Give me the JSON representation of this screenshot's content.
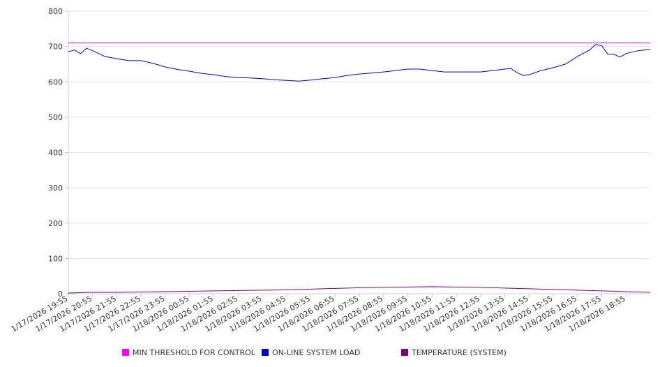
{
  "chart_data": {
    "type": "line",
    "ylim": [
      0,
      800
    ],
    "yticks": [
      0,
      100,
      200,
      300,
      400,
      500,
      600,
      700,
      800
    ],
    "grid": "horizontal",
    "legend_placement": "bottom",
    "x_tick_labels": [
      "1/17/2026 19:55",
      "1/17/2026 20:55",
      "1/17/2026 21:55",
      "1/17/2026 22:55",
      "1/17/2026 23:55",
      "1/18/2026 00:55",
      "1/18/2026 01:55",
      "1/18/2026 02:55",
      "1/18/2026 03:55",
      "1/18/2026 04:55",
      "1/18/2026 05:55",
      "1/18/2026 06:55",
      "1/18/2026 07:55",
      "1/18/2026 08:55",
      "1/18/2026 09:55",
      "1/18/2026 10:55",
      "1/18/2026 11:55",
      "1/18/2026 12:55",
      "1/18/2026 13:55",
      "1/18/2026 14:55",
      "1/18/2026 15:55",
      "1/18/2026 16:55",
      "1/18/2026 17:55",
      "1/18/2026 18:55"
    ],
    "x_range": [
      "1/17/2026 19:55",
      "1/18/2026 19:55"
    ],
    "series": [
      {
        "name": "MIN THRESHOLD FOR CONTROL",
        "color": "#ff00ff",
        "points": [
          [
            "1/17/2026 19:55",
            710
          ],
          [
            "1/18/2026 19:55",
            710
          ]
        ]
      },
      {
        "name": "ON-LINE SYSTEM LOAD",
        "color": "#0000dd",
        "points": [
          [
            "1/17/2026 19:55",
            685
          ],
          [
            "1/17/2026 20:10",
            690
          ],
          [
            "1/17/2026 20:25",
            680
          ],
          [
            "1/17/2026 20:40",
            695
          ],
          [
            "1/17/2026 20:55",
            688
          ],
          [
            "1/17/2026 21:25",
            672
          ],
          [
            "1/17/2026 21:55",
            665
          ],
          [
            "1/17/2026 22:25",
            660
          ],
          [
            "1/17/2026 22:55",
            660
          ],
          [
            "1/17/2026 23:25",
            652
          ],
          [
            "1/17/2026 23:55",
            642
          ],
          [
            "1/18/2026 00:25",
            635
          ],
          [
            "1/18/2026 00:55",
            630
          ],
          [
            "1/18/2026 01:25",
            624
          ],
          [
            "1/18/2026 01:55",
            620
          ],
          [
            "1/18/2026 02:25",
            615
          ],
          [
            "1/18/2026 02:55",
            612
          ],
          [
            "1/18/2026 03:25",
            611
          ],
          [
            "1/18/2026 03:55",
            609
          ],
          [
            "1/18/2026 04:25",
            606
          ],
          [
            "1/18/2026 04:55",
            604
          ],
          [
            "1/18/2026 05:25",
            602
          ],
          [
            "1/18/2026 05:55",
            605
          ],
          [
            "1/18/2026 06:25",
            609
          ],
          [
            "1/18/2026 06:55",
            612
          ],
          [
            "1/18/2026 07:25",
            618
          ],
          [
            "1/18/2026 07:55",
            622
          ],
          [
            "1/18/2026 08:25",
            625
          ],
          [
            "1/18/2026 08:55",
            628
          ],
          [
            "1/18/2026 09:25",
            632
          ],
          [
            "1/18/2026 09:55",
            636
          ],
          [
            "1/18/2026 10:25",
            636
          ],
          [
            "1/18/2026 10:55",
            632
          ],
          [
            "1/18/2026 11:25",
            628
          ],
          [
            "1/18/2026 11:55",
            628
          ],
          [
            "1/18/2026 12:25",
            628
          ],
          [
            "1/18/2026 12:55",
            628
          ],
          [
            "1/18/2026 13:25",
            632
          ],
          [
            "1/18/2026 13:55",
            636
          ],
          [
            "1/18/2026 14:10",
            638
          ],
          [
            "1/18/2026 14:25",
            626
          ],
          [
            "1/18/2026 14:40",
            618
          ],
          [
            "1/18/2026 14:55",
            620
          ],
          [
            "1/18/2026 15:25",
            632
          ],
          [
            "1/18/2026 15:55",
            640
          ],
          [
            "1/18/2026 16:25",
            650
          ],
          [
            "1/18/2026 16:55",
            672
          ],
          [
            "1/18/2026 17:25",
            690
          ],
          [
            "1/18/2026 17:40",
            706
          ],
          [
            "1/18/2026 17:55",
            702
          ],
          [
            "1/18/2026 18:10",
            678
          ],
          [
            "1/18/2026 18:25",
            678
          ],
          [
            "1/18/2026 18:40",
            670
          ],
          [
            "1/18/2026 18:55",
            680
          ],
          [
            "1/18/2026 19:25",
            688
          ],
          [
            "1/18/2026 19:55",
            692
          ]
        ]
      },
      {
        "name": "TEMPERATURE (SYSTEM)",
        "color": "#800080",
        "points": [
          [
            "1/17/2026 19:55",
            2
          ],
          [
            "1/17/2026 20:55",
            4
          ],
          [
            "1/17/2026 21:55",
            4
          ],
          [
            "1/17/2026 22:55",
            5
          ],
          [
            "1/17/2026 23:55",
            6
          ],
          [
            "1/18/2026 00:55",
            7
          ],
          [
            "1/18/2026 01:55",
            8
          ],
          [
            "1/18/2026 02:55",
            9
          ],
          [
            "1/18/2026 03:55",
            10
          ],
          [
            "1/18/2026 04:55",
            11
          ],
          [
            "1/18/2026 05:55",
            13
          ],
          [
            "1/18/2026 06:55",
            15
          ],
          [
            "1/18/2026 07:55",
            17
          ],
          [
            "1/18/2026 08:55",
            18
          ],
          [
            "1/18/2026 09:55",
            19
          ],
          [
            "1/18/2026 10:55",
            20
          ],
          [
            "1/18/2026 11:55",
            19
          ],
          [
            "1/18/2026 12:55",
            18
          ],
          [
            "1/18/2026 13:55",
            16
          ],
          [
            "1/18/2026 14:55",
            14
          ],
          [
            "1/18/2026 15:55",
            12
          ],
          [
            "1/18/2026 16:55",
            10
          ],
          [
            "1/18/2026 17:55",
            8
          ],
          [
            "1/18/2026 18:55",
            6
          ],
          [
            "1/18/2026 19:55",
            4
          ]
        ]
      }
    ]
  }
}
